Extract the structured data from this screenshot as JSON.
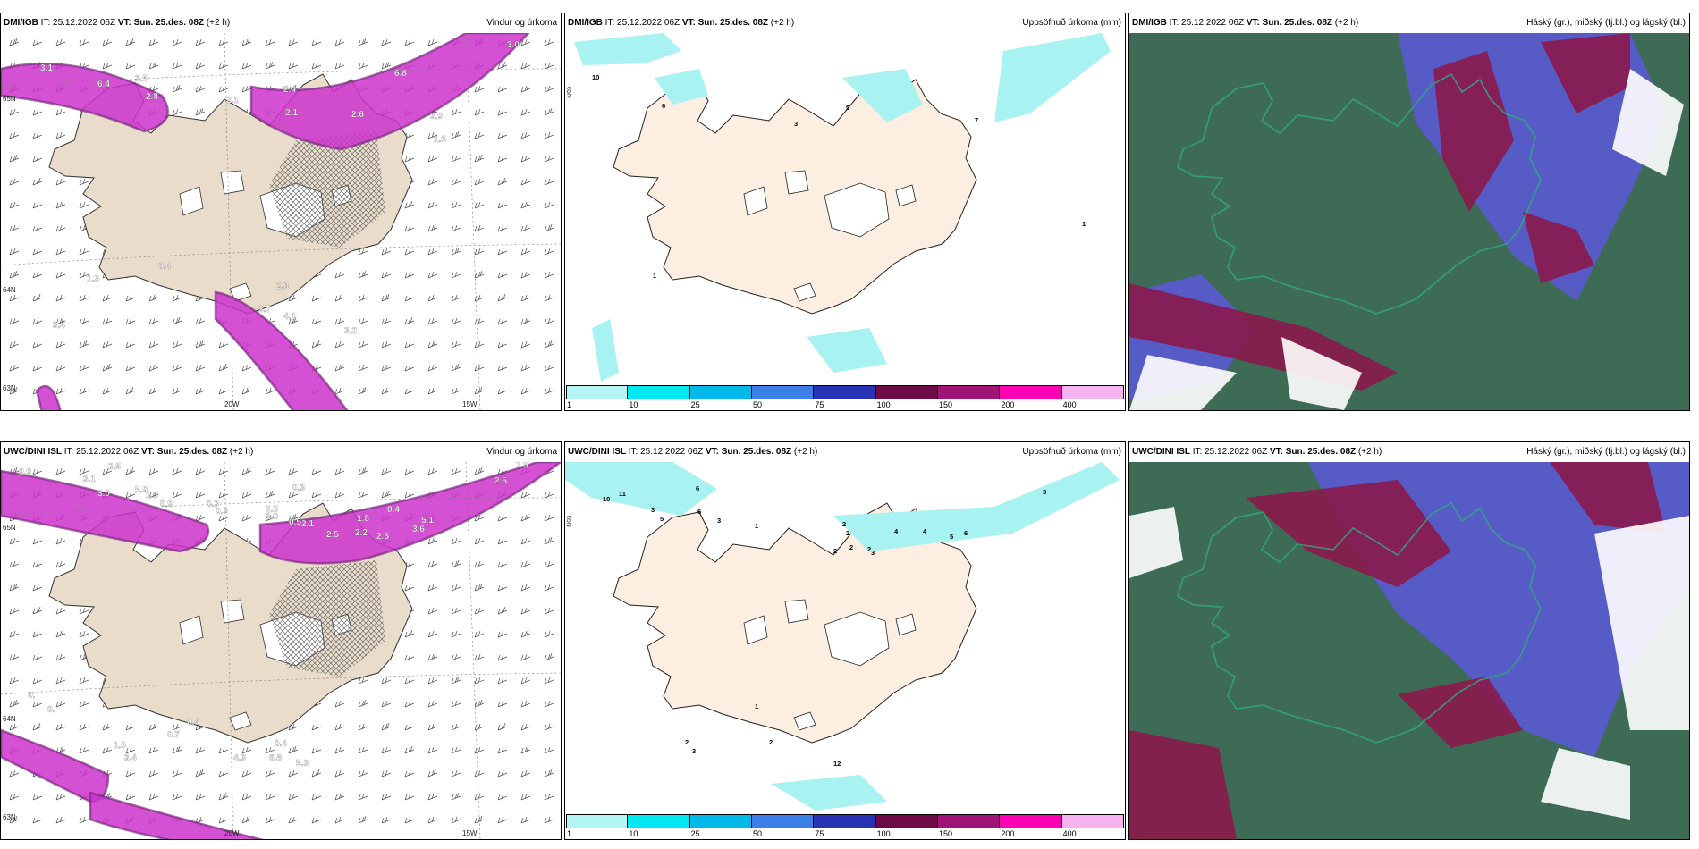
{
  "panels": [
    {
      "model": "DMI/IGB",
      "it": "IT: 25.12.2022 06Z",
      "vt": "VT: Sun. 25.des. 08Z",
      "lead": "(+2 h)",
      "field": "Vindur og úrkoma",
      "type": "wind"
    },
    {
      "model": "DMI/IGB",
      "it": "IT: 25.12.2022 06Z",
      "vt": "VT: Sun. 25.des. 08Z",
      "lead": "(+2 h)",
      "field": "Uppsöfnuð úrkoma (mm)",
      "type": "precip"
    },
    {
      "model": "DMI/IGB",
      "it": "IT: 25.12.2022 06Z",
      "vt": "VT: Sun. 25.des. 08Z",
      "lead": "(+2 h)",
      "field": "Háský (gr.), miðský (fj.bl.) og lágský (bl.)",
      "type": "cloud"
    },
    {
      "model": "UWC/DINI ISL",
      "it": "IT: 25.12.2022 06Z",
      "vt": "VT: Sun. 25.des. 08Z",
      "lead": "(+2 h)",
      "field": "Vindur og úrkoma",
      "type": "wind"
    },
    {
      "model": "UWC/DINI ISL",
      "it": "IT: 25.12.2022 06Z",
      "vt": "VT: Sun. 25.des. 08Z",
      "lead": "(+2 h)",
      "field": "Uppsöfnuð úrkoma (mm)",
      "type": "precip"
    },
    {
      "model": "UWC/DINI ISL",
      "it": "IT: 25.12.2022 06Z",
      "vt": "VT: Sun. 25.des. 08Z",
      "lead": "(+2 h)",
      "field": "Háský (gr.), miðský (fj.bl.) og lágský (bl.)",
      "type": "cloud"
    }
  ],
  "wind_labels": [
    [
      "3.1",
      "6.4",
      "3.5",
      "2.8",
      "2.1",
      "2.4",
      "2.1",
      "6.8",
      "2.6",
      "3.9",
      "3.0",
      "1.5",
      "0.4",
      "2.3",
      "2.7",
      "4.1",
      "3.2",
      "3.4",
      "1.3"
    ],
    [
      "9.9",
      "3.1",
      "2.5",
      "3.0",
      "5.9",
      "1.3",
      "0.9",
      "0.3",
      "0.3",
      "5.5",
      "1.0",
      "0.5",
      "2.1",
      "2.5",
      "2.2",
      "2.5",
      "3.6",
      "1.8",
      "0.4",
      "5.1",
      "1.9",
      "2.5",
      "0.3",
      "0.",
      "0.",
      "0.7",
      "0.4",
      "1.5",
      "3.4",
      "4.3",
      "6.8",
      "5.3",
      "0.4"
    ]
  ],
  "precip_labels": [
    [
      "10",
      "6",
      "3",
      "5",
      "7",
      "1",
      "1"
    ],
    [
      "10",
      "11",
      "6",
      "3",
      "5",
      "6",
      "3",
      "1",
      "2",
      "2",
      "2",
      "2",
      "2",
      "3",
      "4",
      "4",
      "5",
      "6",
      "3",
      "1",
      "2",
      "2",
      "3",
      "12"
    ]
  ],
  "axis_labels": {
    "lat": "65N",
    "lat2": "64N",
    "lat3": "63N",
    "lon1": "20W",
    "lon2": "15W"
  },
  "colorbar": {
    "ticks": [
      "1",
      "10",
      "25",
      "50",
      "75",
      "100",
      "150",
      "200",
      "400"
    ],
    "colors": [
      "#b3f5f5",
      "#00e8f0",
      "#00b9ea",
      "#3c7fe6",
      "#2832b4",
      "#6e0a46",
      "#a01478",
      "#ff00b4",
      "#f5b4f0"
    ]
  },
  "colors": {
    "land": "#e9dccb",
    "land_light": "#fcefe2",
    "magenta": "#cc33cc",
    "purple": "#7a2a82",
    "cyan": "#a8f2f2",
    "green": "#3d6b56",
    "darkred": "#8a1a4a",
    "blue": "#5a5ad2"
  }
}
